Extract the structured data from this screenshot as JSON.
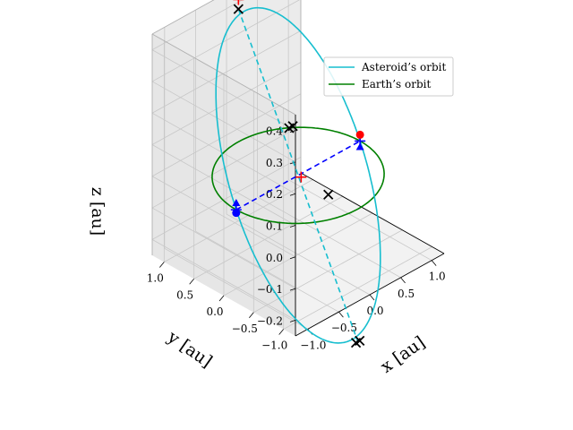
{
  "chart_data": {
    "type": "line",
    "projection": "3d",
    "xlabel": "x [au]",
    "ylabel": "y [au]",
    "zlabel": "z [au]",
    "xlim": [
      -1.2,
      1.2
    ],
    "ylim": [
      -1.2,
      1.2
    ],
    "zlim": [
      -0.25,
      0.45
    ],
    "xticks": [
      "−1.0",
      "−0.5",
      "0.0",
      "0.5",
      "1.0"
    ],
    "yticks": [
      "1.0",
      "0.5",
      "0.0",
      "−0.5",
      "−1.0"
    ],
    "zticks": [
      "0.4",
      "0.3",
      "0.2",
      "0.1",
      "0.0",
      "−0.1",
      "−0.2"
    ],
    "grid": true,
    "legend": {
      "placement": "top-right",
      "entries": [
        {
          "label": "Asteroid’s orbit",
          "color": "#17becf"
        },
        {
          "label": "Earth’s orbit",
          "color": "#008000"
        }
      ]
    },
    "series": [
      {
        "name": "Asteroid’s orbit",
        "color": "#17becf",
        "orbit": {
          "semi_major_axis": 1.0,
          "eccentricity": 0.3,
          "inclination_deg": 25,
          "node_axis": "x"
        }
      },
      {
        "name": "Earth’s orbit",
        "color": "#008000",
        "orbit": {
          "semi_major_axis": 1.0,
          "eccentricity": 0.0,
          "inclination_deg": 0
        }
      }
    ],
    "line_of_nodes": {
      "color": "#0000ff",
      "style": "dashed",
      "from": [
        -1.0,
        0.0,
        0.0
      ],
      "to": [
        1.0,
        0.0,
        0.0
      ]
    },
    "apsides_line": {
      "color": "#17becf",
      "style": "dashed",
      "from": [
        0.0,
        1.0,
        0.42
      ],
      "to": [
        0.0,
        -1.0,
        -0.42
      ]
    },
    "markers": [
      {
        "kind": "x",
        "color": "#000000",
        "point": [
          0.0,
          1.0,
          0.42
        ]
      },
      {
        "kind": "x",
        "color": "#000000",
        "point": [
          -0.03,
          0.12,
          0.14
        ]
      },
      {
        "kind": "x",
        "color": "#000000",
        "point": [
          0.03,
          0.12,
          0.14
        ]
      },
      {
        "kind": "x",
        "color": "#000000",
        "point": [
          0.15,
          -0.35,
          -0.04
        ]
      },
      {
        "kind": "x",
        "color": "#000000",
        "point": [
          -0.03,
          -1.0,
          -0.42
        ]
      },
      {
        "kind": "x",
        "color": "#000000",
        "point": [
          0.03,
          -1.0,
          -0.42
        ]
      },
      {
        "kind": "plus",
        "color": "#ff0000",
        "point": [
          0.0,
          1.0,
          0.45
        ]
      },
      {
        "kind": "plus",
        "color": "#ff0000",
        "point": [
          0.0,
          -0.05,
          0.0
        ]
      },
      {
        "kind": "plus",
        "color": "#0000ff",
        "point": [
          -1.0,
          0.0,
          0.0
        ]
      },
      {
        "kind": "plus",
        "color": "#0000ff",
        "point": [
          1.0,
          0.0,
          0.0
        ]
      },
      {
        "kind": "dot",
        "color": "#ff0000",
        "point": [
          1.0,
          0.0,
          0.02
        ]
      },
      {
        "kind": "dot",
        "color": "#0000ff",
        "point": [
          -1.0,
          0.0,
          -0.01
        ]
      },
      {
        "kind": "tri",
        "color": "#0000ff",
        "point": [
          1.0,
          0.0,
          -0.02
        ]
      },
      {
        "kind": "tri",
        "color": "#0000ff",
        "point": [
          -1.0,
          0.0,
          0.02
        ]
      }
    ]
  }
}
